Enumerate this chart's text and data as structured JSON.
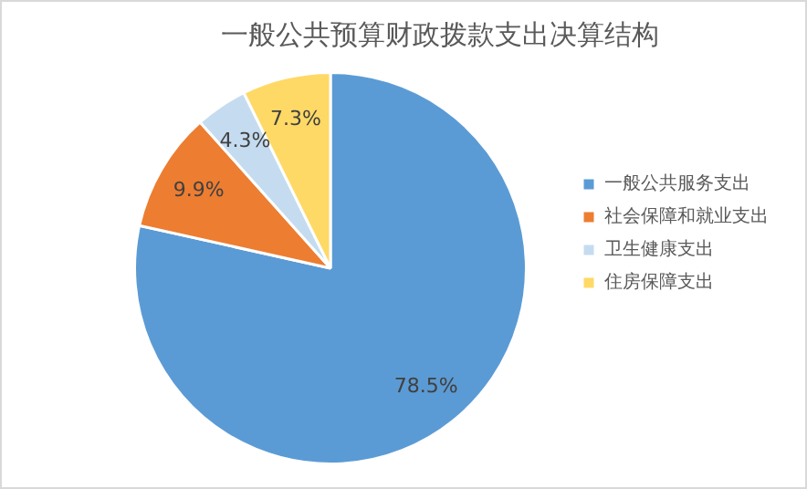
{
  "chart_data": {
    "type": "pie",
    "title": "一般公共预算财政拨款支出决算结构",
    "categories": [
      "一般公共服务支出",
      "社会保障和就业支出",
      "卫生健康支出",
      "住房保障支出"
    ],
    "values": [
      78.5,
      9.9,
      4.3,
      7.3
    ],
    "colors": [
      "#5b9bd5",
      "#ed7d31",
      "#c5dcf0",
      "#ffd966"
    ],
    "value_labels": [
      "78.5%",
      "9.9%",
      "4.3%",
      "7.3%"
    ],
    "legend": "right"
  }
}
